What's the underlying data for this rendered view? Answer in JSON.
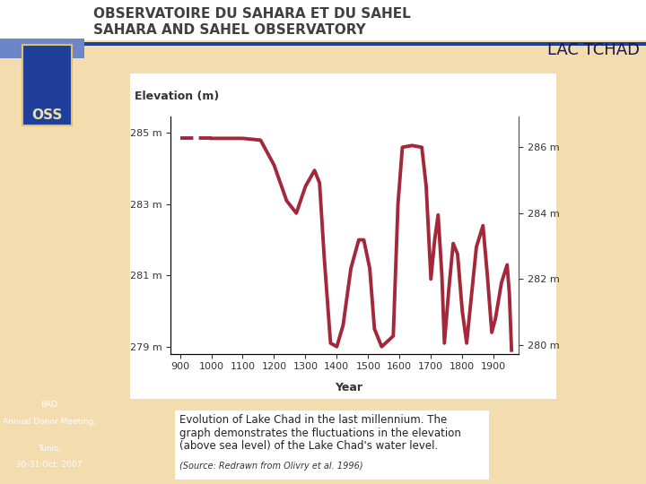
{
  "header": {
    "title": "OBSERVATOIRE DU SAHARA ET DU SAHEL",
    "subtitle": "SAHARA AND SAHEL OBSERVATORY",
    "section": "LAC TCHAD",
    "logo": "OSS"
  },
  "sidebar": [
    "BAD",
    "Annual Donor Meeting,",
    "Tunis,",
    "30-31 Oct. 2007"
  ],
  "caption": {
    "lines": [
      "Evolution of Lake Chad in the last millennium. The",
      "graph demonstrates the fluctuations in the elevation",
      "(above sea level) of the Lake Chad's water level."
    ],
    "source": "(Source: Redrawn from Olivry et al. 1996)"
  },
  "chart_data": {
    "type": "line",
    "y_label": "Elevation (m)",
    "x_label": "Year",
    "xlim": [
      870,
      1980
    ],
    "xticks": [
      900,
      1000,
      1100,
      1200,
      1300,
      1400,
      1500,
      1600,
      1700,
      1800,
      1900
    ],
    "ylim": [
      278.8,
      285.46
    ],
    "yticks": [
      {
        "value": 279,
        "label": "279 m"
      },
      {
        "value": 281,
        "label": "281 m"
      },
      {
        "value": 283,
        "label": "283 m"
      },
      {
        "value": 285,
        "label": "285 m"
      }
    ],
    "y2lim": [
      279.73,
      286.93
    ],
    "y2ticks": [
      {
        "value": 280,
        "label": "280 m"
      },
      {
        "value": 282,
        "label": "282 m"
      },
      {
        "value": 284,
        "label": "284 m"
      },
      {
        "value": 286,
        "label": "286 m"
      }
    ],
    "grid": false,
    "series": [
      {
        "color": "#a3283a",
        "line_style": "dashed",
        "x": [
          900,
          1000
        ],
        "values": [
          284.85,
          284.85
        ]
      },
      {
        "color": "#a3283a",
        "line_style": "solid",
        "x": [
          1000,
          1100,
          1157,
          1200,
          1240,
          1271,
          1300,
          1329,
          1345,
          1360,
          1380,
          1400,
          1420,
          1445,
          1470,
          1486,
          1505,
          1520,
          1543,
          1580,
          1595,
          1609,
          1640,
          1671,
          1685,
          1700,
          1712,
          1723,
          1735,
          1743,
          1757,
          1771,
          1785,
          1800,
          1814,
          1830,
          1845,
          1866,
          1880,
          1894,
          1906,
          1925,
          1943,
          1950,
          1957
        ],
        "values": [
          284.85,
          284.85,
          284.8,
          284.1,
          283.1,
          282.75,
          283.5,
          283.95,
          283.6,
          281.5,
          279.1,
          279.0,
          279.6,
          281.2,
          282.0,
          282.0,
          281.2,
          279.5,
          279.0,
          279.3,
          283.0,
          284.6,
          284.65,
          284.6,
          283.5,
          280.9,
          282.0,
          282.7,
          281.0,
          279.1,
          280.6,
          281.9,
          281.6,
          280.0,
          279.1,
          280.5,
          281.8,
          282.4,
          281.0,
          279.4,
          279.8,
          280.8,
          281.3,
          280.5,
          278.9
        ]
      }
    ]
  }
}
